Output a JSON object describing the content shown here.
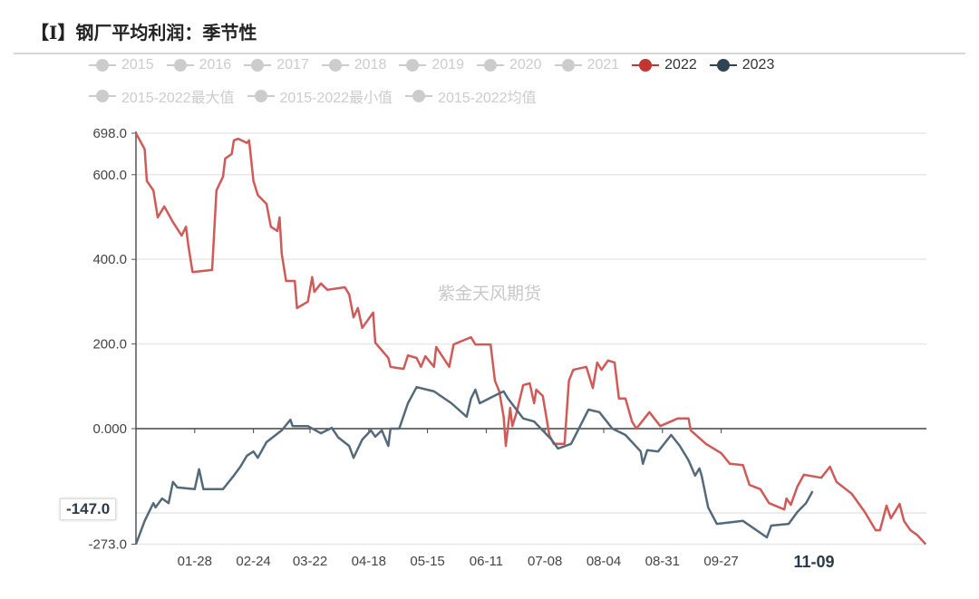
{
  "title": "【I】钢厂平均利润：季节性",
  "watermark": "紫金天风期货",
  "legend": [
    {
      "name": "2015",
      "color": "#cccccc",
      "active": false
    },
    {
      "name": "2016",
      "color": "#cccccc",
      "active": false
    },
    {
      "name": "2017",
      "color": "#cccccc",
      "active": false
    },
    {
      "name": "2018",
      "color": "#cccccc",
      "active": false
    },
    {
      "name": "2019",
      "color": "#cccccc",
      "active": false
    },
    {
      "name": "2020",
      "color": "#cccccc",
      "active": false
    },
    {
      "name": "2021",
      "color": "#cccccc",
      "active": false
    },
    {
      "name": "2022",
      "color": "#c23531",
      "active": true
    },
    {
      "name": "2023",
      "color": "#2f4554",
      "active": true
    },
    {
      "name": "2015-2022最大值",
      "color": "#cccccc",
      "active": false
    },
    {
      "name": "2015-2022最小值",
      "color": "#cccccc",
      "active": false
    },
    {
      "name": "2015-2022均值",
      "color": "#cccccc",
      "active": false
    }
  ],
  "axis_pointer": {
    "y_label": "-147.0",
    "x_label": "11-09"
  },
  "chart_data": {
    "type": "line",
    "ylim": [
      -273,
      698
    ],
    "y_ticks": [
      "698.0",
      "600.0",
      "400.0",
      "200.0",
      "0.000",
      "-273.0"
    ],
    "y_tick_values": [
      698,
      600,
      400,
      200,
      0,
      -273
    ],
    "x_ticks": [
      "01-28",
      "02-24",
      "03-22",
      "04-18",
      "05-15",
      "06-11",
      "07-08",
      "08-04",
      "08-31",
      "09-27"
    ],
    "grid": true,
    "legend_position": "top",
    "series": [
      {
        "name": "2022",
        "color": "#d05a57",
        "points": [
          [
            "01-01",
            698
          ],
          [
            "01-05",
            660
          ],
          [
            "01-06",
            585
          ],
          [
            "01-09",
            563
          ],
          [
            "01-11",
            499
          ],
          [
            "01-14",
            525
          ],
          [
            "01-18",
            488
          ],
          [
            "01-22",
            456
          ],
          [
            "01-24",
            477
          ],
          [
            "01-25",
            435
          ],
          [
            "01-27",
            370
          ],
          [
            "02-05",
            375
          ],
          [
            "02-07",
            563
          ],
          [
            "02-10",
            595
          ],
          [
            "02-11",
            638
          ],
          [
            "02-14",
            649
          ],
          [
            "02-15",
            681
          ],
          [
            "02-17",
            685
          ],
          [
            "02-21",
            675
          ],
          [
            "02-22",
            681
          ],
          [
            "02-24",
            585
          ],
          [
            "02-26",
            552
          ],
          [
            "03-02",
            531
          ],
          [
            "03-04",
            477
          ],
          [
            "03-07",
            467
          ],
          [
            "03-08",
            499
          ],
          [
            "03-09",
            413
          ],
          [
            "03-11",
            349
          ],
          [
            "03-15",
            349
          ],
          [
            "03-16",
            285
          ],
          [
            "03-21",
            300
          ],
          [
            "03-23",
            358
          ],
          [
            "03-24",
            323
          ],
          [
            "03-27",
            343
          ],
          [
            "03-30",
            328
          ],
          [
            "04-07",
            334
          ],
          [
            "04-09",
            317
          ],
          [
            "04-11",
            263
          ],
          [
            "04-13",
            285
          ],
          [
            "04-15",
            238
          ],
          [
            "04-20",
            274
          ],
          [
            "04-21",
            203
          ],
          [
            "04-27",
            167
          ],
          [
            "04-28",
            146
          ],
          [
            "05-04",
            141
          ],
          [
            "05-06",
            173
          ],
          [
            "05-10",
            167
          ],
          [
            "05-12",
            146
          ],
          [
            "05-14",
            171
          ],
          [
            "05-18",
            146
          ],
          [
            "05-19",
            193
          ],
          [
            "05-25",
            146
          ],
          [
            "05-27",
            199
          ],
          [
            "06-04",
            216
          ],
          [
            "06-06",
            199
          ],
          [
            "06-13",
            199
          ],
          [
            "06-15",
            113
          ],
          [
            "06-17",
            88
          ],
          [
            "06-19",
            28
          ],
          [
            "06-20",
            -41
          ],
          [
            "06-22",
            49
          ],
          [
            "06-23",
            6
          ],
          [
            "06-25",
            39
          ],
          [
            "06-28",
            103
          ],
          [
            "07-01",
            107
          ],
          [
            "07-03",
            60
          ],
          [
            "07-04",
            92
          ],
          [
            "07-07",
            77
          ],
          [
            "07-10",
            -15
          ],
          [
            "07-12",
            -36
          ],
          [
            "07-17",
            -36
          ],
          [
            "07-19",
            113
          ],
          [
            "07-21",
            139
          ],
          [
            "07-27",
            146
          ],
          [
            "07-30",
            96
          ],
          [
            "08-01",
            156
          ],
          [
            "08-03",
            139
          ],
          [
            "08-06",
            161
          ],
          [
            "08-09",
            156
          ],
          [
            "08-11",
            71
          ],
          [
            "08-14",
            71
          ],
          [
            "08-17",
            17
          ],
          [
            "08-19",
            0
          ],
          [
            "08-25",
            39
          ],
          [
            "08-30",
            6
          ],
          [
            "09-07",
            24
          ],
          [
            "09-12",
            24
          ],
          [
            "09-13",
            -4
          ],
          [
            "09-20",
            -36
          ],
          [
            "09-27",
            -58
          ],
          [
            "10-01",
            -83
          ],
          [
            "10-07",
            -86
          ],
          [
            "10-10",
            -133
          ],
          [
            "10-15",
            -143
          ],
          [
            "10-19",
            -176
          ],
          [
            "10-26",
            -191
          ],
          [
            "10-27",
            -165
          ],
          [
            "10-29",
            -180
          ],
          [
            "11-01",
            -137
          ],
          [
            "11-04",
            -109
          ],
          [
            "11-12",
            -116
          ],
          [
            "11-16",
            -90
          ],
          [
            "11-19",
            -126
          ],
          [
            "11-26",
            -154
          ],
          [
            "12-02",
            -197
          ],
          [
            "12-07",
            -240
          ],
          [
            "12-09",
            -240
          ],
          [
            "12-12",
            -182
          ],
          [
            "12-14",
            -212
          ],
          [
            "12-18",
            -178
          ],
          [
            "12-20",
            -218
          ],
          [
            "12-23",
            -240
          ],
          [
            "12-26",
            -251
          ],
          [
            "12-30",
            -273
          ]
        ]
      },
      {
        "name": "2023",
        "color": "#546a7b",
        "points": [
          [
            "01-01",
            -273
          ],
          [
            "01-05",
            -218
          ],
          [
            "01-09",
            -176
          ],
          [
            "01-10",
            -186
          ],
          [
            "01-13",
            -165
          ],
          [
            "01-16",
            -176
          ],
          [
            "01-18",
            -126
          ],
          [
            "01-20",
            -139
          ],
          [
            "01-28",
            -143
          ],
          [
            "01-30",
            -96
          ],
          [
            "02-01",
            -143
          ],
          [
            "02-10",
            -143
          ],
          [
            "02-15",
            -111
          ],
          [
            "02-18",
            -90
          ],
          [
            "02-21",
            -64
          ],
          [
            "02-24",
            -54
          ],
          [
            "02-26",
            -69
          ],
          [
            "03-02",
            -32
          ],
          [
            "03-09",
            -4
          ],
          [
            "03-13",
            21
          ],
          [
            "03-14",
            6
          ],
          [
            "03-21",
            6
          ],
          [
            "03-27",
            -11
          ],
          [
            "04-01",
            2
          ],
          [
            "04-04",
            -21
          ],
          [
            "04-09",
            -41
          ],
          [
            "04-11",
            -69
          ],
          [
            "04-15",
            -26
          ],
          [
            "04-19",
            -4
          ],
          [
            "04-21",
            -19
          ],
          [
            "04-24",
            -4
          ],
          [
            "04-27",
            -41
          ],
          [
            "04-28",
            0
          ],
          [
            "05-02",
            0
          ],
          [
            "05-06",
            60
          ],
          [
            "05-10",
            98
          ],
          [
            "05-18",
            88
          ],
          [
            "05-26",
            60
          ],
          [
            "06-02",
            28
          ],
          [
            "06-04",
            71
          ],
          [
            "06-06",
            92
          ],
          [
            "06-08",
            60
          ],
          [
            "06-16",
            81
          ],
          [
            "06-19",
            88
          ],
          [
            "06-21",
            71
          ],
          [
            "06-28",
            24
          ],
          [
            "07-03",
            17
          ],
          [
            "07-11",
            -26
          ],
          [
            "07-14",
            -47
          ],
          [
            "07-20",
            -36
          ],
          [
            "07-28",
            45
          ],
          [
            "08-02",
            39
          ],
          [
            "08-08",
            0
          ],
          [
            "08-14",
            -15
          ],
          [
            "08-21",
            -54
          ],
          [
            "08-22",
            -83
          ],
          [
            "08-24",
            -51
          ],
          [
            "08-29",
            -54
          ],
          [
            "09-04",
            -15
          ],
          [
            "09-08",
            -41
          ],
          [
            "09-12",
            -75
          ],
          [
            "09-15",
            -111
          ],
          [
            "09-17",
            -94
          ],
          [
            "09-18",
            -111
          ],
          [
            "09-21",
            -186
          ],
          [
            "09-25",
            -225
          ],
          [
            "10-07",
            -218
          ],
          [
            "10-18",
            -257
          ],
          [
            "10-20",
            -229
          ],
          [
            "10-28",
            -225
          ],
          [
            "11-01",
            -197
          ],
          [
            "11-05",
            -176
          ],
          [
            "11-08",
            -148
          ]
        ]
      }
    ]
  }
}
